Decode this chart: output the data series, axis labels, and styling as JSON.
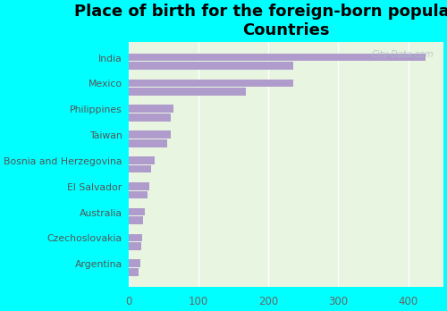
{
  "categories": [
    "India",
    "Mexico",
    "Philippines",
    "Taiwan",
    "Bosnia and Herzegovina",
    "El Salvador",
    "Australia",
    "Czechoslovakia",
    "Argentina"
  ],
  "values_a": [
    425,
    235,
    65,
    60,
    38,
    30,
    24,
    20,
    17
  ],
  "values_b": [
    235,
    168,
    60,
    55,
    33,
    27,
    21,
    18,
    15
  ],
  "bar_color": "#b09ccc",
  "background_color": "#00ffff",
  "plot_bg_color": "#e8f5e0",
  "title_line1": "Place of birth for the foreign-born population -",
  "title_line2": "Countries",
  "title_fontsize": 13,
  "xlim": [
    0,
    450
  ],
  "xticks": [
    0,
    100,
    200,
    300,
    400
  ],
  "watermark": "City-Data.com"
}
